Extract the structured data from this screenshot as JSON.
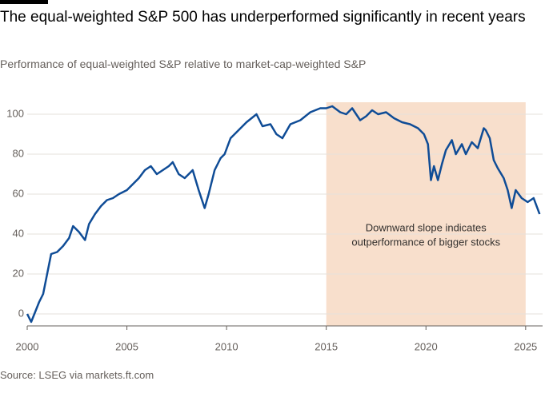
{
  "chart_data": {
    "type": "line",
    "title": "The equal-weighted S&P 500 has underperformed significantly in recent years",
    "subtitle": "Performance of equal-weighted S&P relative to market-cap-weighted S&P",
    "source": "Source: LSEG via markets.ft.com",
    "annotation": [
      "Downward slope indicates",
      "outperformance of bigger stocks"
    ],
    "highlight": {
      "x": [
        2015,
        2025
      ],
      "color": "#f8dfcc"
    },
    "xlim": [
      2000,
      2025.85
    ],
    "ylim": [
      -6,
      106
    ],
    "xticks": [
      2000,
      2005,
      2010,
      2015,
      2020,
      2025
    ],
    "yticks": [
      0,
      20,
      40,
      60,
      80,
      100
    ],
    "grid": true,
    "series": [
      {
        "color": "#0f4c96",
        "x": [
          2000.0,
          2000.2,
          2000.4,
          2000.6,
          2000.8,
          2001.0,
          2001.2,
          2001.5,
          2001.8,
          2002.1,
          2002.3,
          2002.6,
          2002.9,
          2003.1,
          2003.4,
          2003.7,
          2004.0,
          2004.3,
          2004.6,
          2005.0,
          2005.3,
          2005.6,
          2005.9,
          2006.2,
          2006.5,
          2006.8,
          2007.1,
          2007.3,
          2007.6,
          2007.9,
          2008.3,
          2008.6,
          2008.9,
          2009.1,
          2009.4,
          2009.7,
          2009.9,
          2010.2,
          2010.6,
          2011.0,
          2011.5,
          2011.8,
          2012.2,
          2012.5,
          2012.8,
          2013.2,
          2013.7,
          2014.2,
          2014.7,
          2015.0,
          2015.3,
          2015.7,
          2016.0,
          2016.3,
          2016.7,
          2017.0,
          2017.3,
          2017.6,
          2018.0,
          2018.4,
          2018.8,
          2019.2,
          2019.6,
          2019.9,
          2020.1,
          2020.25,
          2020.4,
          2020.6,
          2020.8,
          2021.0,
          2021.3,
          2021.5,
          2021.8,
          2022.0,
          2022.3,
          2022.6,
          2022.9,
          2023.0,
          2023.2,
          2023.4,
          2023.6,
          2023.9,
          2024.1,
          2024.3,
          2024.5,
          2024.8,
          2025.1,
          2025.4,
          2025.7
        ],
        "values": [
          0,
          -4,
          1,
          6,
          10,
          20,
          30,
          31,
          34,
          38,
          44,
          41,
          37,
          45,
          50,
          54,
          57,
          58,
          60,
          62,
          65,
          68,
          72,
          74,
          70,
          72,
          74,
          76,
          70,
          68,
          72,
          62,
          53,
          60,
          72,
          78,
          80,
          88,
          92,
          96,
          100,
          94,
          95,
          90,
          88,
          95,
          97,
          101,
          103,
          103,
          104,
          101,
          100,
          103,
          97,
          99,
          102,
          100,
          101,
          98,
          96,
          95,
          93,
          90,
          85,
          67,
          74,
          67,
          75,
          82,
          87,
          80,
          85,
          80,
          86,
          83,
          93,
          92,
          88,
          77,
          73,
          68,
          62,
          53,
          62,
          58,
          56,
          58,
          50
        ]
      }
    ]
  }
}
